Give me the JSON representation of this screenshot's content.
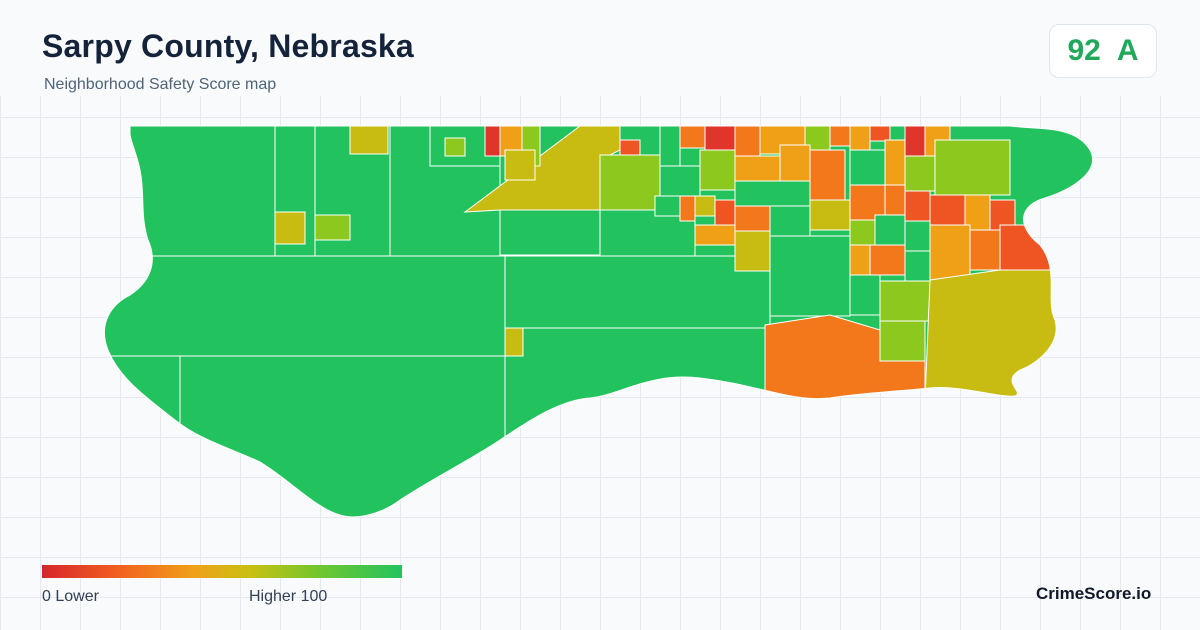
{
  "header": {
    "title": "Sarpy County, Nebraska",
    "subtitle": "Neighborhood Safety Score map"
  },
  "score_badge": {
    "score": "92",
    "grade": "A",
    "color": "#22a85a"
  },
  "legend": {
    "min_label": "0  Lower",
    "max_label": "Higher  100",
    "colors": [
      "#d7262b",
      "#f2621f",
      "#f0a019",
      "#c8c012",
      "#74c62c",
      "#22c35e"
    ]
  },
  "map": {
    "region": "Sarpy County, Nebraska",
    "base_color": "#22c35e",
    "palette": {
      "red": "#e0352a",
      "red_orange": "#ee5522",
      "orange": "#f3781c",
      "amber": "#f0a017",
      "olive": "#c8bc12",
      "lime": "#8dc81e",
      "green": "#22c35e"
    }
  },
  "brand": "CrimeScore.io"
}
